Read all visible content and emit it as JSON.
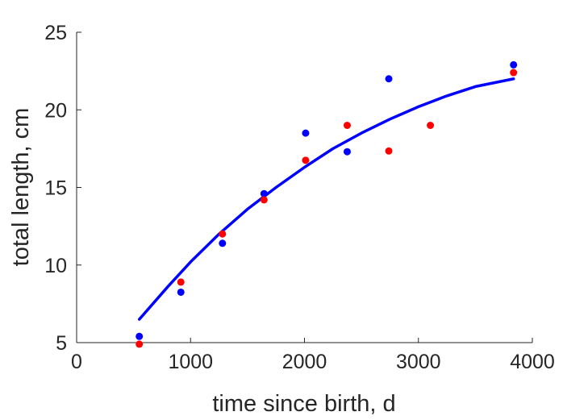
{
  "chart_data": {
    "type": "scatter",
    "title": "",
    "xlabel": "time since birth, d",
    "ylabel": "total length, cm",
    "xlim": [
      0,
      4000
    ],
    "ylim": [
      5,
      25
    ],
    "xticks": [
      0,
      1000,
      2000,
      3000,
      4000
    ],
    "yticks": [
      5,
      10,
      15,
      20,
      25
    ],
    "grid": false,
    "legend": "none",
    "series": [
      {
        "kind": "points",
        "color": "#0000ff",
        "points": [
          [
            550,
            5.4
          ],
          [
            915,
            8.25
          ],
          [
            1280,
            11.4
          ],
          [
            1645,
            14.6
          ],
          [
            2010,
            18.5
          ],
          [
            2375,
            17.3
          ],
          [
            2740,
            22.0
          ],
          [
            3835,
            22.9
          ]
        ]
      },
      {
        "kind": "points",
        "color": "#ff0000",
        "points": [
          [
            550,
            4.9
          ],
          [
            915,
            8.9
          ],
          [
            1280,
            12.0
          ],
          [
            1645,
            14.2
          ],
          [
            2010,
            16.75
          ],
          [
            2375,
            19.0
          ],
          [
            2740,
            17.35
          ],
          [
            3105,
            19.0
          ],
          [
            3835,
            22.4
          ]
        ]
      },
      {
        "kind": "line",
        "color": "#0000ff",
        "points": [
          [
            550,
            6.5
          ],
          [
            800,
            8.6
          ],
          [
            1000,
            10.2
          ],
          [
            1250,
            12.0
          ],
          [
            1500,
            13.6
          ],
          [
            1750,
            15.0
          ],
          [
            2000,
            16.3
          ],
          [
            2250,
            17.5
          ],
          [
            2500,
            18.5
          ],
          [
            2750,
            19.4
          ],
          [
            3000,
            20.2
          ],
          [
            3250,
            20.9
          ],
          [
            3500,
            21.5
          ],
          [
            3835,
            22.0
          ]
        ]
      }
    ]
  }
}
